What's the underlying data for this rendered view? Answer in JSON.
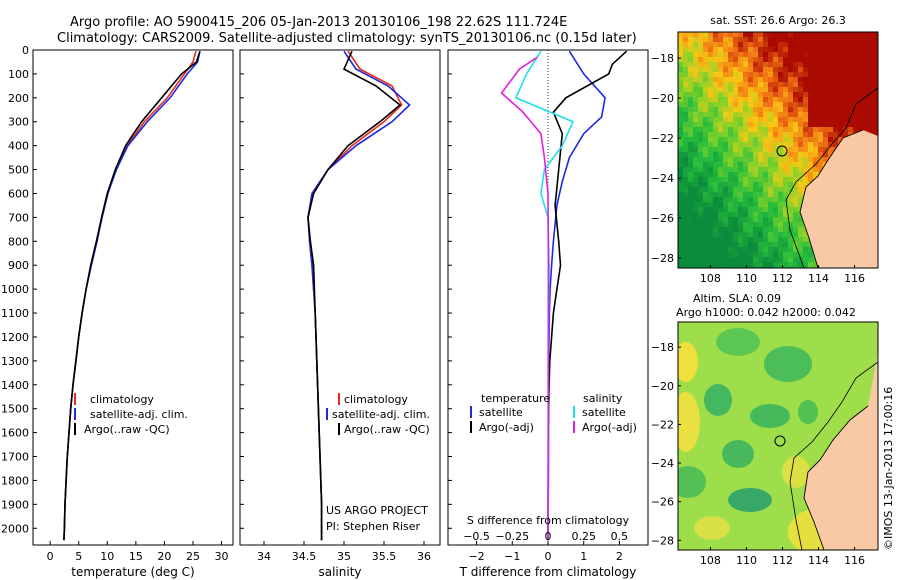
{
  "header": {
    "line1": "Argo profile: AO 5900415_206 05-Jan-2013 20130106_198 22.62S 111.724E",
    "line2": "Climatology: CARS2009. Satellite-adjusted climatology: synTS_20130106.nc (0.15d later)"
  },
  "colors": {
    "climatology": "#e8281c",
    "satellite": "#1c2be0",
    "argo": "#000000",
    "sat_salinity": "#22e0e8",
    "argo_salinity": "#e020e0"
  },
  "chart_data": [
    {
      "type": "line",
      "id": "temperature",
      "xlabel": "temperature (deg C)",
      "ylabel": "",
      "xlim": [
        -3,
        32
      ],
      "ylim": [
        2070,
        0
      ],
      "xticks": [
        0,
        5,
        10,
        15,
        20,
        25,
        30
      ],
      "yticks": [
        0,
        100,
        200,
        300,
        400,
        500,
        600,
        700,
        800,
        900,
        1000,
        1100,
        1200,
        1300,
        1400,
        1500,
        1600,
        1700,
        1800,
        1900,
        2000
      ],
      "legend": [
        "climatology",
        "satellite-adj. clim.",
        "Argo(..raw -QC)"
      ],
      "series": [
        {
          "name": "climatology",
          "color_key": "climatology",
          "x": [
            25.5,
            25,
            23.5,
            20.5,
            16.5,
            13.5,
            11.5,
            10,
            9,
            8.2,
            7.2,
            6.3,
            5.6,
            5,
            4.5,
            4,
            3.6,
            3.3,
            3,
            2.8,
            2.6,
            2.5,
            2.4
          ],
          "y": [
            5,
            50,
            100,
            200,
            300,
            400,
            500,
            600,
            700,
            800,
            900,
            1000,
            1100,
            1200,
            1300,
            1400,
            1500,
            1600,
            1700,
            1800,
            1900,
            2000,
            2050
          ]
        },
        {
          "name": "satellite-adj. clim.",
          "color_key": "satellite",
          "x": [
            26.2,
            25.8,
            24,
            21,
            17,
            13.6,
            11.6,
            10.1,
            9.1,
            8.2,
            7.2,
            6.3,
            5.6,
            5,
            4.5,
            4,
            3.6,
            3.3,
            3,
            2.8,
            2.6,
            2.5,
            2.4
          ],
          "y": [
            5,
            50,
            100,
            200,
            300,
            400,
            500,
            600,
            700,
            800,
            900,
            1000,
            1100,
            1200,
            1300,
            1400,
            1500,
            1600,
            1700,
            1800,
            1900,
            2000,
            2050
          ]
        },
        {
          "name": "Argo(..raw -QC)",
          "color_key": "argo",
          "x": [
            26.2,
            25.6,
            23,
            19.5,
            16,
            13.2,
            11.4,
            10,
            9,
            8.1,
            7.1,
            6.3,
            5.6,
            5,
            4.5,
            4,
            3.6,
            3.3,
            3,
            2.8,
            2.6,
            2.5,
            2.4
          ],
          "y": [
            5,
            50,
            100,
            200,
            300,
            400,
            500,
            600,
            700,
            800,
            900,
            1000,
            1100,
            1200,
            1300,
            1400,
            1500,
            1600,
            1700,
            1800,
            1900,
            2000,
            2050
          ]
        }
      ]
    },
    {
      "type": "line",
      "id": "salinity",
      "xlabel": "salinity",
      "ylabel": "",
      "xlim": [
        33.7,
        36.2
      ],
      "ylim": [
        2070,
        0
      ],
      "xticks": [
        34,
        34.5,
        35,
        35.5,
        36
      ],
      "legend": [
        "climatology",
        "satellite-adj. clim.",
        "Argo(..raw -QC)"
      ],
      "annotation": [
        "US ARGO PROJECT",
        "PI: Stephen Riser"
      ],
      "series": [
        {
          "name": "climatology",
          "color_key": "climatology",
          "x": [
            35.05,
            35.2,
            35.6,
            35.72,
            35.5,
            35.1,
            34.8,
            34.6,
            34.55,
            34.57,
            34.6,
            34.62,
            34.64,
            34.65,
            34.66,
            34.67,
            34.68,
            34.69,
            34.7,
            34.71,
            34.72,
            34.72
          ],
          "y": [
            5,
            80,
            150,
            230,
            300,
            400,
            500,
            600,
            700,
            800,
            900,
            1000,
            1100,
            1200,
            1300,
            1400,
            1500,
            1600,
            1700,
            1800,
            1900,
            2050
          ]
        },
        {
          "name": "satellite-adj. clim.",
          "color_key": "satellite",
          "x": [
            35.0,
            35.15,
            35.55,
            35.82,
            35.6,
            35.15,
            34.8,
            34.6,
            34.55,
            34.57,
            34.6,
            34.62,
            34.64,
            34.65,
            34.66,
            34.67,
            34.68,
            34.69,
            34.7,
            34.71,
            34.72,
            34.72
          ],
          "y": [
            5,
            80,
            150,
            230,
            300,
            400,
            500,
            600,
            700,
            800,
            900,
            1000,
            1100,
            1200,
            1300,
            1400,
            1500,
            1600,
            1700,
            1800,
            1900,
            2050
          ]
        },
        {
          "name": "Argo(..raw -QC)",
          "color_key": "argo",
          "x": [
            35.1,
            35.0,
            35.4,
            35.7,
            35.45,
            35.05,
            34.8,
            34.62,
            34.55,
            34.58,
            34.62,
            34.63,
            34.64,
            34.65,
            34.66,
            34.67,
            34.68,
            34.69,
            34.7,
            34.71,
            34.72,
            34.72
          ],
          "y": [
            5,
            80,
            150,
            230,
            300,
            400,
            500,
            600,
            700,
            800,
            900,
            1000,
            1100,
            1200,
            1300,
            1400,
            1500,
            1600,
            1700,
            1800,
            1900,
            2050
          ]
        }
      ]
    },
    {
      "type": "line",
      "id": "difference",
      "xlabel": "T difference from climatology",
      "x2label": "S difference from climatology",
      "ylabel": "",
      "xlim": [
        -2.8,
        2.8
      ],
      "ylim": [
        2070,
        0
      ],
      "xticks": [
        -2,
        -1,
        0,
        1,
        2
      ],
      "x2ticks": [
        -0.5,
        -0.25,
        0,
        0.25,
        0.5
      ],
      "legend_titles": [
        "temperature",
        "salinity"
      ],
      "legend": [
        "satellite",
        "Argo(-adj)",
        "satellite",
        "Argo(-adj)"
      ],
      "series": [
        {
          "name": "satellite",
          "color_key": "satellite",
          "x": [
            0.6,
            1.0,
            1.6,
            1.5,
            1.0,
            0.6,
            0.4,
            0.25,
            0.15,
            0.1,
            0.06,
            0.04,
            0.03,
            0.02,
            0.02,
            0.01,
            0.01,
            0.01,
            0.0
          ],
          "y": [
            5,
            100,
            200,
            280,
            350,
            450,
            550,
            650,
            800,
            900,
            1000,
            1100,
            1200,
            1300,
            1400,
            1500,
            1600,
            1800,
            2050
          ]
        },
        {
          "name": "Argo(-adj)",
          "color_key": "argo",
          "x": [
            2.2,
            1.8,
            1.7,
            0.5,
            0.15,
            0.4,
            0.3,
            0.2,
            0.3,
            0.35,
            0.25,
            0.15,
            0.1,
            0.05,
            0.03,
            0.02,
            0.01,
            0.0
          ],
          "y": [
            5,
            60,
            100,
            200,
            260,
            350,
            500,
            650,
            800,
            900,
            1000,
            1100,
            1200,
            1300,
            1400,
            1500,
            1600,
            2050
          ]
        },
        {
          "name": "satellite",
          "color_key": "sat_salinity",
          "x": [
            -0.2,
            -0.6,
            -0.9,
            0.7,
            0.4,
            -0.1,
            -0.2,
            0.0,
            0.03,
            0.02,
            0.01,
            0.01,
            0.0
          ],
          "y": [
            5,
            100,
            200,
            300,
            400,
            500,
            600,
            700,
            900,
            1100,
            1300,
            1600,
            2050
          ]
        },
        {
          "name": "Argo(-adj)",
          "color_key": "argo_salinity",
          "x": [
            -0.3,
            -0.8,
            -1.3,
            -0.7,
            -0.2,
            -0.1,
            0.0,
            0.01,
            0.0
          ],
          "y": [
            30,
            80,
            180,
            260,
            350,
            450,
            600,
            900,
            2050
          ]
        }
      ]
    },
    {
      "type": "heatmap",
      "id": "sst_map",
      "title": "sat. SST: 26.6  Argo: 26.3",
      "xlim": [
        106.2,
        117.3
      ],
      "ylim": [
        -28.5,
        -16.7
      ],
      "xticks": [
        108,
        110,
        112,
        114,
        116
      ],
      "yticks": [
        -18,
        -20,
        -22,
        -24,
        -26,
        -28
      ],
      "marker": {
        "lon": 111.724,
        "lat": -22.62
      }
    },
    {
      "type": "heatmap",
      "id": "sla_map",
      "title": [
        "Altim. SLA: 0.09",
        "Argo h1000: 0.042 h2000: 0.042"
      ],
      "xlim": [
        106.2,
        117.3
      ],
      "ylim": [
        -28.5,
        -16.7
      ],
      "xticks": [
        108,
        110,
        112,
        114,
        116
      ],
      "yticks": [
        -18,
        -20,
        -22,
        -24,
        -26,
        -28
      ],
      "marker": {
        "lon": 111.724,
        "lat": -22.62
      }
    }
  ],
  "side_stamp": "©IMOS 13-Jan-2013 17:00:16"
}
